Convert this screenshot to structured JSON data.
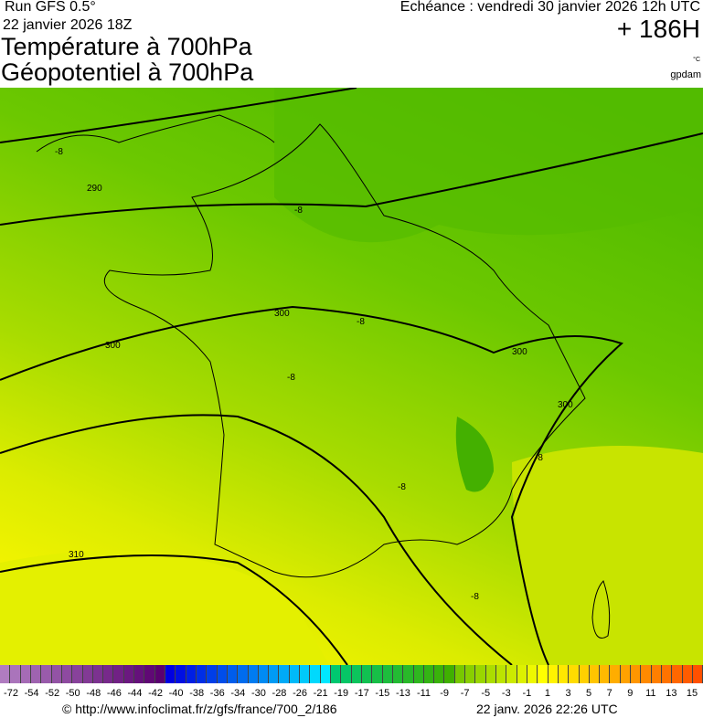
{
  "header": {
    "run": "Run GFS 0.5°",
    "run_date": "22 janvier 2026 18Z",
    "title1": "Température à 700hPa",
    "title2": "Géopotentiel à 700hPa",
    "echeance": "Echéance : vendredi 30 janvier 2026 12h UTC",
    "lead": "+ 186H",
    "unit_temp": "°C",
    "unit_geo": "gpdam"
  },
  "map": {
    "region": "France",
    "contour_labels": [
      "290",
      "300",
      "300",
      "300",
      "300",
      "310"
    ],
    "isotherm_labels": [
      "-8",
      "-8",
      "-8",
      "-8",
      "-8",
      "-8",
      "-8"
    ]
  },
  "colorbar": {
    "labels": [
      "-72",
      "-54",
      "-52",
      "-50",
      "-48",
      "-46",
      "-44",
      "-42",
      "-40",
      "-38",
      "-36",
      "-34",
      "-30",
      "-28",
      "-26",
      "-21",
      "-19",
      "-17",
      "-15",
      "-13",
      "-11",
      "-9",
      "-7",
      "-5",
      "-3",
      "-1",
      "1",
      "3",
      "5",
      "7",
      "9",
      "11",
      "13",
      "15"
    ]
  },
  "footer": {
    "source": "© http://www.infoclimat.fr/z/gfs/france/700_2/186",
    "generated": "22 janv. 2026 22:26 UTC"
  }
}
